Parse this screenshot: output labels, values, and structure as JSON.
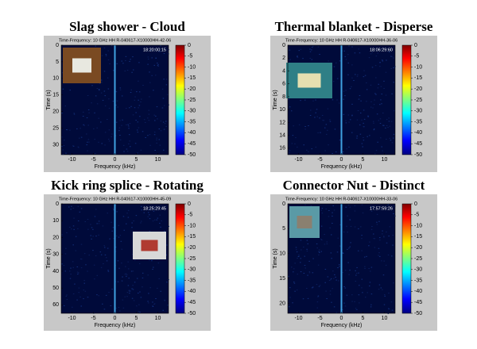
{
  "chart_data": [
    {
      "type": "spectrogram",
      "title": "Slag shower - Cloud",
      "subtitle": "Time-Frequency: 10 GHz HH R-040617-X10000HH-42-06",
      "timestamp": "18:20:00:15",
      "xlabel": "Frequency (kHz)",
      "ylabel": "Time (s)",
      "xlim": [
        -12.5,
        12.5
      ],
      "xticks": [
        -10,
        -5,
        0,
        5,
        10
      ],
      "ylim": [
        33,
        0
      ],
      "yticks": [
        0,
        5,
        10,
        15,
        20,
        25,
        30
      ],
      "clim": [
        -50,
        0
      ],
      "cticks": [
        0,
        -5,
        -10,
        -15,
        -20,
        -25,
        -30,
        -35,
        -40,
        -45,
        -50
      ]
    },
    {
      "type": "spectrogram",
      "title": "Thermal blanket - Disperse",
      "subtitle": "Time-Frequency: 10 GHz HH R-040617-X10000HH-36-06",
      "timestamp": "18:06:29:60",
      "xlabel": "Frequency (kHz)",
      "ylabel": "Time (s)",
      "xlim": [
        -12.5,
        12.5
      ],
      "xticks": [
        -10,
        -5,
        0,
        5,
        10
      ],
      "ylim": [
        17,
        0
      ],
      "yticks": [
        0,
        2,
        4,
        6,
        8,
        10,
        12,
        14,
        16
      ],
      "clim": [
        -50,
        0
      ],
      "cticks": [
        0,
        -5,
        -10,
        -15,
        -20,
        -25,
        -30,
        -35,
        -40,
        -45,
        -50
      ]
    },
    {
      "type": "spectrogram",
      "title": "Kick ring splice - Rotating",
      "subtitle": "Time-Frequency: 10 GHz HH R-040617-X10000HH-45-09",
      "timestamp": "18:25:29:45",
      "xlabel": "Frequency (kHz)",
      "ylabel": "Time (s)",
      "xlim": [
        -12.5,
        12.5
      ],
      "xticks": [
        -10,
        -5,
        0,
        5,
        10
      ],
      "ylim": [
        65,
        0
      ],
      "yticks": [
        0,
        10,
        20,
        30,
        40,
        50,
        60
      ],
      "clim": [
        -50,
        0
      ],
      "cticks": [
        0,
        -5,
        -10,
        -15,
        -20,
        -25,
        -30,
        -35,
        -40,
        -45,
        -50
      ]
    },
    {
      "type": "spectrogram",
      "title": "Connector Nut - Distinct",
      "subtitle": "Time-Frequency: 10 GHz HH R-040617-X10000HH-33-06",
      "timestamp": "17:57:59:26",
      "xlabel": "Frequency (kHz)",
      "ylabel": "Time (s)",
      "xlim": [
        -12.5,
        12.5
      ],
      "xticks": [
        -10,
        -5,
        0,
        5,
        10
      ],
      "ylim": [
        22,
        0
      ],
      "yticks": [
        0,
        5,
        10,
        15,
        20
      ],
      "clim": [
        -50,
        0
      ],
      "cticks": [
        0,
        -5,
        -10,
        -15,
        -20,
        -25,
        -30,
        -35,
        -40,
        -45,
        -50
      ]
    }
  ]
}
